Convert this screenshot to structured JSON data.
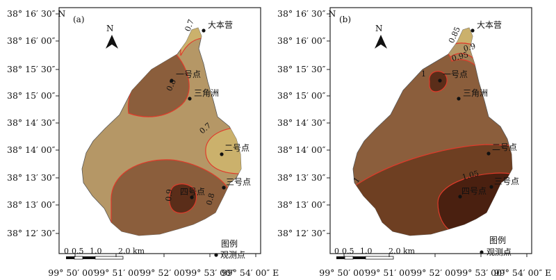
{
  "panels": [
    {
      "id": "a",
      "label": "(a)",
      "north": "N",
      "lat_ticks": [
        "38° 16′ 30″ N",
        "38° 16′ 00″",
        "38° 15′ 30″",
        "38° 15′ 00″",
        "38° 14′ 30″",
        "38° 14′ 00″",
        "38° 13′ 30″",
        "38° 13′ 00″",
        "38° 12′ 30″"
      ],
      "lon_ticks": [
        "99° 50′ 00″",
        "99° 51′ 00″",
        "99° 52′ 00″",
        "99° 53′ 00″",
        "99° 54′ 00″ E"
      ],
      "points": [
        "大本营",
        "一号点",
        "三角洲",
        "二号点",
        "三号点",
        "四号点"
      ],
      "contours": [
        "0.7",
        "0.8",
        "0.7",
        "0.9",
        "0.8"
      ],
      "legend_title": "图例",
      "legend_item": "观测点",
      "scalebar": [
        "0",
        "0.5",
        "1.0",
        "2.0 km"
      ]
    },
    {
      "id": "b",
      "label": "(b)",
      "north": "N",
      "lat_ticks": [
        "38° 16′ 30″ N",
        "38° 16′ 00″",
        "38° 15′ 30″",
        "38° 15′ 00″",
        "38° 14′ 30″",
        "38° 14′ 00″",
        "38° 13′ 30″",
        "38° 13′ 00″",
        "38° 12′ 30″"
      ],
      "lon_ticks": [
        "99° 50′ 00″",
        "99° 51′ 00″",
        "99° 52′ 00″",
        "99° 53′ 00″",
        "99° 54′ 00″ E"
      ],
      "points": [
        "大本营",
        "一号点",
        "三角洲",
        "二号点",
        "三号点",
        "四号点"
      ],
      "contours": [
        "0.85",
        "0.9",
        "0.95",
        "1",
        "1",
        "1.05"
      ],
      "legend_title": "图例",
      "legend_item": "观测点",
      "scalebar": [
        "0",
        "0.5",
        "1.0",
        "2.0 km"
      ]
    }
  ],
  "colors": {
    "tan": "#b59766",
    "light": "#cbb16c",
    "mid": "#8b5e3c",
    "dark": "#5a2d19",
    "contour": "#e03a2a"
  }
}
